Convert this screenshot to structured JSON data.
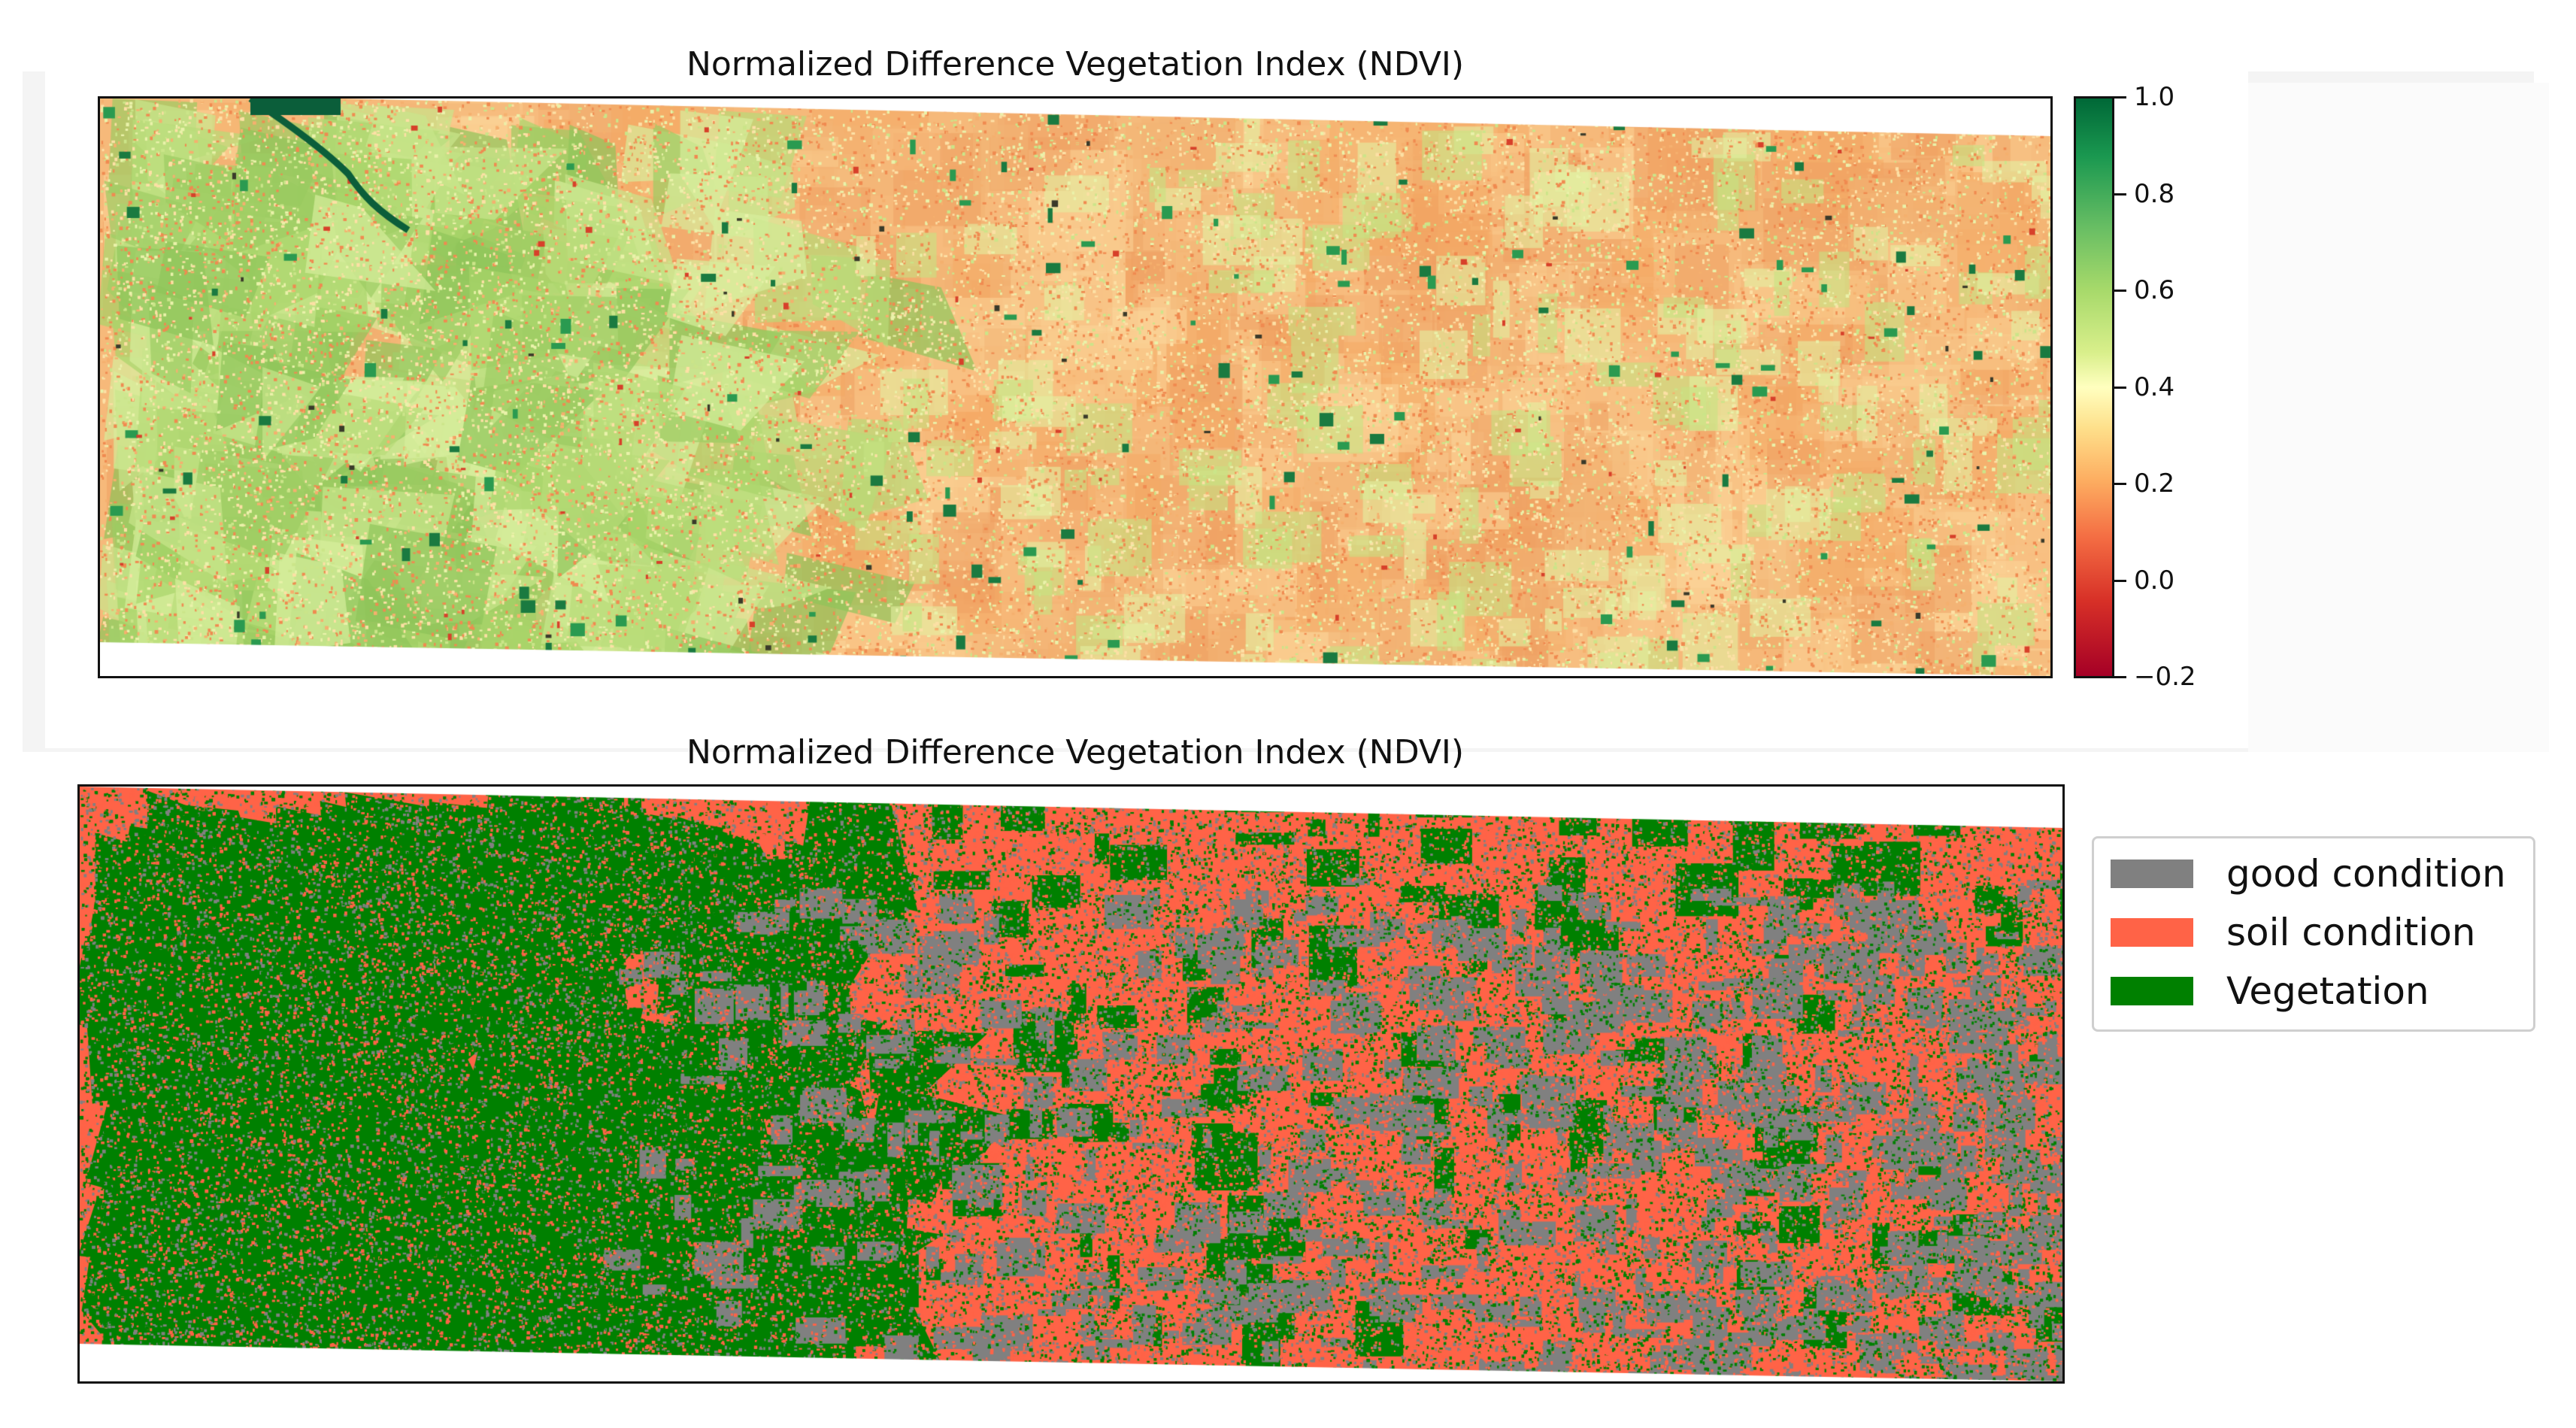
{
  "top_panel": {
    "title": "Normalized Difference Vegetation Index (NDVI)",
    "colormap": "RdYlGn",
    "colorbar_ticks": [
      "1.0",
      "0.8",
      "0.6",
      "0.4",
      "0.2",
      "0.0",
      "−0.2"
    ],
    "colorbar_range": [
      -0.2,
      1.0
    ]
  },
  "bottom_panel": {
    "title": "Normalized Difference Vegetation Index (NDVI)",
    "legend": [
      {
        "label": "good condition",
        "color": "#808080"
      },
      {
        "label": "soil condition",
        "color": "#ff6347"
      },
      {
        "label": "Vegetation",
        "color": "#008000"
      }
    ]
  }
}
